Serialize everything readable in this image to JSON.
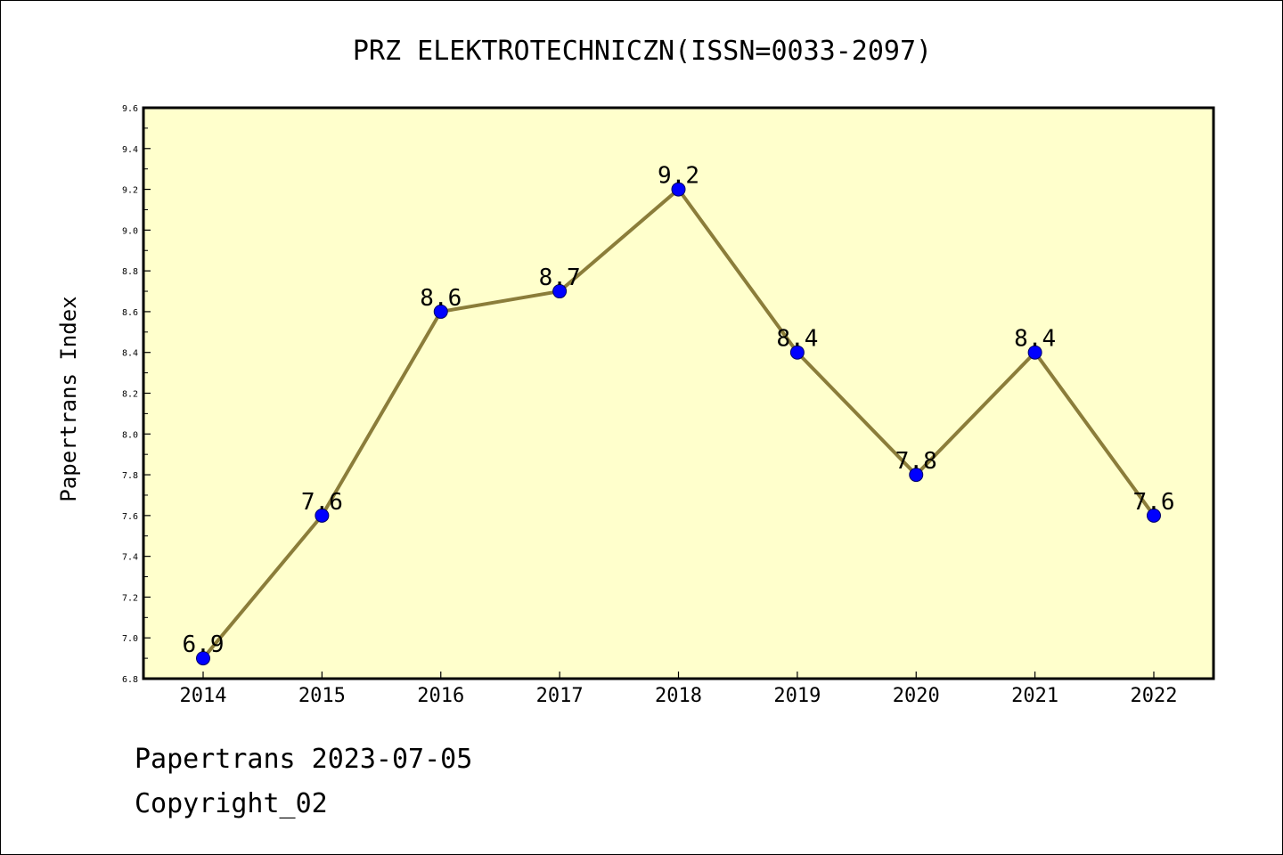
{
  "chart_data": {
    "type": "line",
    "title": "PRZ ELEKTROTECHNICZN(ISSN=0033-2097)",
    "xlabel": "",
    "ylabel": "Papertrans Index",
    "categories": [
      "2014",
      "2015",
      "2016",
      "2017",
      "2018",
      "2019",
      "2020",
      "2021",
      "2022"
    ],
    "values": [
      6.9,
      7.6,
      8.6,
      8.7,
      9.2,
      8.4,
      7.8,
      8.4,
      7.6
    ],
    "data_labels": [
      "6.9",
      "7.6",
      "8.6",
      "8.7",
      "9.2",
      "8.4",
      "7.8",
      "8.4",
      "7.6"
    ],
    "ylim": [
      6.8,
      9.6
    ],
    "yticks": [
      6.8,
      7.0,
      7.2,
      7.4,
      7.6,
      7.8,
      8.0,
      8.2,
      8.4,
      8.6,
      8.8,
      9.0,
      9.2,
      9.4,
      9.6
    ],
    "ytick_labels": [
      "6.8",
      "7.0",
      "7.2",
      "7.4",
      "7.6",
      "7.8",
      "8.0",
      "8.2",
      "8.4",
      "8.6",
      "8.8",
      "9.0",
      "9.2",
      "9.4",
      "9.6"
    ],
    "grid": false,
    "colors": {
      "plot_background": "#ffffcc",
      "line": "#8b7d3a",
      "marker": "#0000ff",
      "axis": "#000000"
    }
  },
  "footer": {
    "line1": "Papertrans 2023-07-05",
    "line2": "Copyright_02"
  }
}
